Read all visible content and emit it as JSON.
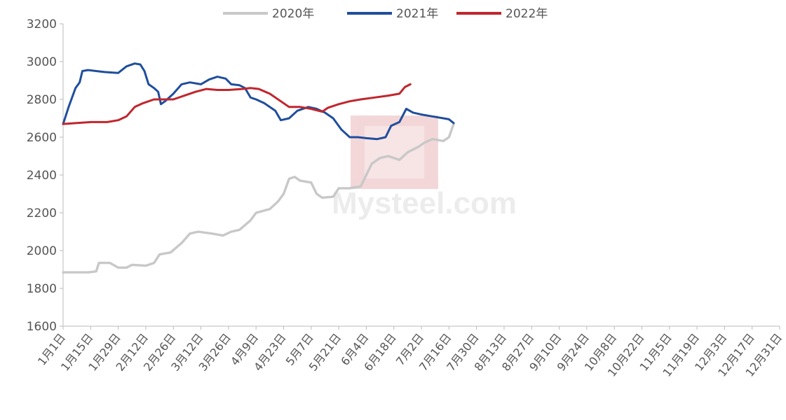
{
  "chart_data": {
    "type": "line",
    "title": "",
    "xlabel": "",
    "ylabel": "",
    "ylim": [
      1600,
      3200
    ],
    "yticks": [
      1600,
      1800,
      2000,
      2200,
      2400,
      2600,
      2800,
      3000,
      3200
    ],
    "categories": [
      "1月1日",
      "1月15日",
      "1月29日",
      "2月12日",
      "2月26日",
      "3月12日",
      "3月26日",
      "4月9日",
      "4月23日",
      "5月7日",
      "5月21日",
      "6月4日",
      "6月18日",
      "7月2日",
      "7月16日",
      "7月30日",
      "8月13日",
      "8月27日",
      "9月10日",
      "9月24日",
      "10月8日",
      "10月22日",
      "11月5日",
      "11月19日",
      "12月3日",
      "12月17日",
      "12月31日"
    ],
    "legend_position": "top-center",
    "grid": false,
    "watermark": "Mysteel.com",
    "series": [
      {
        "name": "2020年",
        "color": "#c8c8c8",
        "points": [
          [
            0,
            1885
          ],
          [
            0.9,
            1885
          ],
          [
            1.2,
            1890
          ],
          [
            1.3,
            1935
          ],
          [
            1.7,
            1935
          ],
          [
            2.0,
            1910
          ],
          [
            2.3,
            1910
          ],
          [
            2.5,
            1925
          ],
          [
            3.0,
            1920
          ],
          [
            3.3,
            1935
          ],
          [
            3.5,
            1980
          ],
          [
            3.9,
            1990
          ],
          [
            4.3,
            2040
          ],
          [
            4.6,
            2090
          ],
          [
            4.9,
            2100
          ],
          [
            5.4,
            2090
          ],
          [
            5.8,
            2080
          ],
          [
            6.1,
            2100
          ],
          [
            6.4,
            2110
          ],
          [
            6.8,
            2160
          ],
          [
            7.0,
            2200
          ],
          [
            7.5,
            2220
          ],
          [
            7.8,
            2260
          ],
          [
            8.0,
            2300
          ],
          [
            8.2,
            2380
          ],
          [
            8.4,
            2390
          ],
          [
            8.6,
            2370
          ],
          [
            9.0,
            2360
          ],
          [
            9.2,
            2300
          ],
          [
            9.4,
            2280
          ],
          [
            9.8,
            2285
          ],
          [
            10.0,
            2330
          ],
          [
            10.4,
            2330
          ],
          [
            10.8,
            2340
          ],
          [
            11.0,
            2400
          ],
          [
            11.2,
            2460
          ],
          [
            11.5,
            2490
          ],
          [
            11.8,
            2500
          ],
          [
            12.2,
            2480
          ],
          [
            12.5,
            2520
          ],
          [
            12.9,
            2550
          ],
          [
            13.1,
            2570
          ],
          [
            13.4,
            2590
          ],
          [
            13.8,
            2580
          ],
          [
            14.0,
            2600
          ],
          [
            14.17,
            2670
          ]
        ]
      },
      {
        "name": "2021年",
        "color": "#1f4e9c",
        "points": [
          [
            0,
            2670
          ],
          [
            0.2,
            2760
          ],
          [
            0.45,
            2860
          ],
          [
            0.6,
            2890
          ],
          [
            0.7,
            2950
          ],
          [
            0.9,
            2955
          ],
          [
            1.2,
            2950
          ],
          [
            1.5,
            2945
          ],
          [
            2.0,
            2940
          ],
          [
            2.3,
            2975
          ],
          [
            2.6,
            2990
          ],
          [
            2.8,
            2985
          ],
          [
            2.95,
            2950
          ],
          [
            3.1,
            2880
          ],
          [
            3.3,
            2860
          ],
          [
            3.45,
            2840
          ],
          [
            3.55,
            2775
          ],
          [
            3.7,
            2790
          ],
          [
            4.0,
            2830
          ],
          [
            4.3,
            2880
          ],
          [
            4.6,
            2890
          ],
          [
            5.0,
            2880
          ],
          [
            5.3,
            2905
          ],
          [
            5.6,
            2920
          ],
          [
            5.9,
            2910
          ],
          [
            6.1,
            2880
          ],
          [
            6.4,
            2875
          ],
          [
            6.6,
            2860
          ],
          [
            6.8,
            2810
          ],
          [
            7.0,
            2800
          ],
          [
            7.3,
            2780
          ],
          [
            7.7,
            2740
          ],
          [
            7.9,
            2690
          ],
          [
            8.2,
            2700
          ],
          [
            8.5,
            2740
          ],
          [
            8.9,
            2760
          ],
          [
            9.2,
            2750
          ],
          [
            9.5,
            2730
          ],
          [
            9.8,
            2700
          ],
          [
            10.1,
            2640
          ],
          [
            10.4,
            2600
          ],
          [
            10.7,
            2600
          ],
          [
            11.0,
            2595
          ],
          [
            11.4,
            2590
          ],
          [
            11.7,
            2600
          ],
          [
            11.9,
            2660
          ],
          [
            12.2,
            2680
          ],
          [
            12.45,
            2750
          ],
          [
            12.7,
            2730
          ],
          [
            13.0,
            2720
          ],
          [
            13.4,
            2710
          ],
          [
            13.8,
            2700
          ],
          [
            14.0,
            2695
          ],
          [
            14.17,
            2675
          ]
        ]
      },
      {
        "name": "2022年",
        "color": "#c0262d",
        "points": [
          [
            0,
            2670
          ],
          [
            0.5,
            2675
          ],
          [
            1.0,
            2680
          ],
          [
            1.6,
            2680
          ],
          [
            2.0,
            2690
          ],
          [
            2.3,
            2710
          ],
          [
            2.6,
            2760
          ],
          [
            2.9,
            2780
          ],
          [
            3.3,
            2800
          ],
          [
            3.7,
            2800
          ],
          [
            4.0,
            2800
          ],
          [
            4.4,
            2820
          ],
          [
            4.8,
            2840
          ],
          [
            5.2,
            2855
          ],
          [
            5.6,
            2850
          ],
          [
            6.0,
            2850
          ],
          [
            6.5,
            2855
          ],
          [
            6.8,
            2860
          ],
          [
            7.1,
            2855
          ],
          [
            7.5,
            2830
          ],
          [
            7.9,
            2790
          ],
          [
            8.2,
            2760
          ],
          [
            8.6,
            2760
          ],
          [
            9.0,
            2750
          ],
          [
            9.4,
            2735
          ],
          [
            9.6,
            2755
          ],
          [
            10.0,
            2775
          ],
          [
            10.4,
            2790
          ],
          [
            10.8,
            2800
          ],
          [
            11.3,
            2810
          ],
          [
            11.8,
            2820
          ],
          [
            12.2,
            2830
          ],
          [
            12.4,
            2865
          ],
          [
            12.6,
            2880
          ]
        ]
      }
    ]
  }
}
